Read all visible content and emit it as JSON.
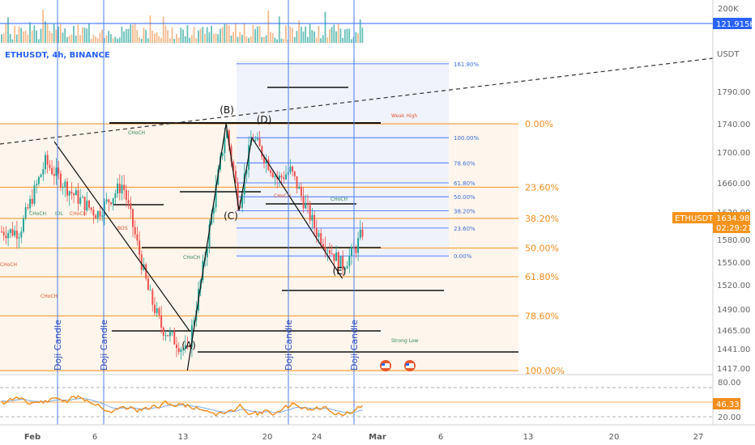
{
  "header": {
    "symbol": "ETHUSDT, 4h, BINANCE",
    "currency": "USDT"
  },
  "price_axis": {
    "ticks": [
      "1790.00",
      "1740.00",
      "1700.00",
      "1660.00",
      "1620.00",
      "1580.00",
      "1550.00",
      "1520.00",
      "1490.00",
      "1465.00",
      "1441.00",
      "1417.00"
    ],
    "current_price": "1634.98",
    "countdown": "02:29:21",
    "symbol_tag": "ETHUSDT"
  },
  "volume_axis": {
    "ticks": [
      "200K"
    ],
    "current": "121.915K"
  },
  "rsi_axis": {
    "ticks": [
      "80.00",
      "20.00"
    ],
    "current": "46.33"
  },
  "time_axis": {
    "ticks": [
      "Feb",
      "6",
      "13",
      "20",
      "24",
      "Mar",
      "6",
      "13",
      "20",
      "27"
    ]
  },
  "fib_big": [
    {
      "label": "0.00%",
      "price": 1744
    },
    {
      "label": "23.60%",
      "price": 1671
    },
    {
      "label": "38.20%",
      "price": 1635
    },
    {
      "label": "50.00%",
      "price": 1601
    },
    {
      "label": "61.80%",
      "price": 1568
    },
    {
      "label": "78.60%",
      "price": 1523
    },
    {
      "label": "100.00%",
      "price": 1460
    }
  ],
  "fib_small": [
    {
      "label": "161.80%",
      "price": 1813
    },
    {
      "label": "100.00%",
      "price": 1728
    },
    {
      "label": "78.60%",
      "price": 1699
    },
    {
      "label": "61.80%",
      "price": 1676
    },
    {
      "label": "50.00%",
      "price": 1660
    },
    {
      "label": "38.20%",
      "price": 1644
    },
    {
      "label": "23.60%",
      "price": 1624
    },
    {
      "label": "0.00%",
      "price": 1592
    }
  ],
  "points": [
    "(A)",
    "(B)",
    "(C)",
    "(D)",
    "(E)"
  ],
  "doji_label": "Doji Candle",
  "markers": {
    "choch": "CHoCH",
    "weak_high": "Weak High",
    "strong_low": "Strong Low",
    "idl": "IDL",
    "bos": "BOS"
  },
  "chart_data": {
    "type": "candlestick",
    "symbol": "ETHUSDT",
    "timeframe": "4h",
    "exchange": "BINANCE",
    "x_ticks": [
      "Feb",
      "6",
      "13",
      "20",
      "24",
      "Mar",
      "6",
      "13",
      "20",
      "27"
    ],
    "y_range": [
      1410,
      1830
    ],
    "current_price": 1634.98,
    "close_path": [
      {
        "date": "2023-01-31",
        "close": 1620
      },
      {
        "date": "2023-02-02",
        "close": 1700
      },
      {
        "date": "2023-02-04",
        "close": 1665
      },
      {
        "date": "2023-02-06",
        "close": 1640
      },
      {
        "date": "2023-02-08",
        "close": 1675
      },
      {
        "date": "2023-02-10",
        "close": 1550
      },
      {
        "date": "2023-02-11",
        "close": 1510
      },
      {
        "date": "2023-02-13",
        "close": 1480
      },
      {
        "date": "2023-02-14",
        "close": 1560
      },
      {
        "date": "2023-02-16",
        "close": 1740
      },
      {
        "date": "2023-02-17",
        "close": 1650
      },
      {
        "date": "2023-02-18",
        "close": 1730
      },
      {
        "date": "2023-02-20",
        "close": 1680
      },
      {
        "date": "2023-02-21",
        "close": 1690
      },
      {
        "date": "2023-02-23",
        "close": 1620
      },
      {
        "date": "2023-02-25",
        "close": 1580
      },
      {
        "date": "2023-02-26",
        "close": 1600
      },
      {
        "date": "2023-02-27",
        "close": 1635
      }
    ],
    "pattern_points": [
      {
        "label": "(A)",
        "date": "2023-02-13",
        "price": 1460
      },
      {
        "label": "(B)",
        "date": "2023-02-16",
        "price": 1744
      },
      {
        "label": "(C)",
        "date": "2023-02-17",
        "price": 1644
      },
      {
        "label": "(D)",
        "date": "2023-02-18",
        "price": 1728
      },
      {
        "label": "(E)",
        "date": "2023-02-25",
        "price": 1566
      }
    ],
    "rsi": {
      "current": 46.33,
      "levels": [
        80,
        20
      ]
    },
    "volume": {
      "current": "121.915K"
    }
  },
  "colors": {
    "up": "#26a69a",
    "down": "#ef5350",
    "fib_big": "#f7931a",
    "fib_small": "#2962ff",
    "rsi": "#f28c1c",
    "doji": "#4a7fe8"
  }
}
